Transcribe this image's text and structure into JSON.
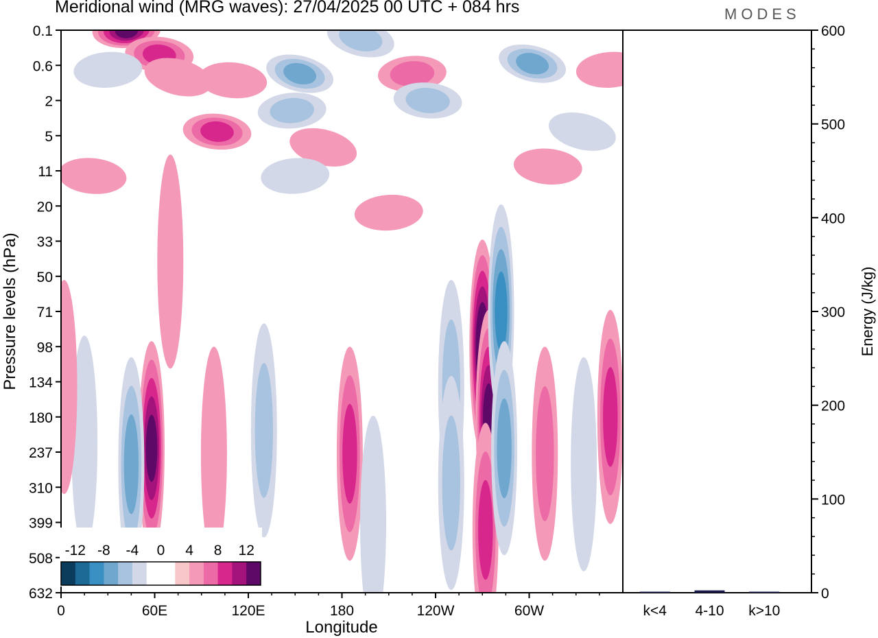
{
  "title": "Meridional wind (MRG waves):  27/04/2025  00 UTC  + 084 hrs",
  "brand": "MODES",
  "chart_data": {
    "type": "heatmap",
    "xlabel": "Longitude",
    "ylabel": "Pressure levels (hPa)",
    "y_scale": "log",
    "x_ticks": [
      "0",
      "60E",
      "120E",
      "180",
      "120W",
      "60W"
    ],
    "x_tick_degrees": [
      0,
      60,
      120,
      180,
      240,
      300
    ],
    "xlim": [
      0,
      360
    ],
    "y_ticks": [
      "0.1",
      "0.6",
      "2",
      "5",
      "11",
      "20",
      "33",
      "50",
      "71",
      "98",
      "134",
      "180",
      "237",
      "310",
      "399",
      "508",
      "632"
    ],
    "colorbar": {
      "tick_labels": [
        "-12",
        "-8",
        "-4",
        "0",
        "4",
        "8",
        "12"
      ],
      "colors": [
        "#0b3c5c",
        "#1b6a96",
        "#3a8fc2",
        "#6fa7cf",
        "#a8c3df",
        "#d3d8e8",
        "#ffffff",
        "#ffffff",
        "#f8c8c8",
        "#f49ab8",
        "#ec6aa6",
        "#d7268c",
        "#a4127b",
        "#5e0868"
      ]
    },
    "features": [
      {
        "lon": 42,
        "p": 0.1,
        "v": 12
      },
      {
        "lon": 63,
        "p": 0.35,
        "v": 8
      },
      {
        "lon": 75,
        "p": 0.9,
        "v": 4
      },
      {
        "lon": 30,
        "p": 0.7,
        "v": -4
      },
      {
        "lon": 110,
        "p": 1.0,
        "v": 4
      },
      {
        "lon": 153,
        "p": 0.8,
        "v": -8
      },
      {
        "lon": 148,
        "p": 2.6,
        "v": -6
      },
      {
        "lon": 100,
        "p": 4.5,
        "v": 8
      },
      {
        "lon": 168,
        "p": 6.5,
        "v": 4
      },
      {
        "lon": 150,
        "p": 12,
        "v": -4
      },
      {
        "lon": 20,
        "p": 12,
        "v": 4
      },
      {
        "lon": 192,
        "p": 0.15,
        "v": -6
      },
      {
        "lon": 225,
        "p": 0.8,
        "v": 6
      },
      {
        "lon": 235,
        "p": 2.0,
        "v": -6
      },
      {
        "lon": 302,
        "p": 0.55,
        "v": -8
      },
      {
        "lon": 352,
        "p": 0.7,
        "v": 4
      },
      {
        "lon": 312,
        "p": 10,
        "v": 4
      },
      {
        "lon": 334,
        "p": 4.5,
        "v": -4
      },
      {
        "lon": 270,
        "p": 98,
        "v": 14
      },
      {
        "lon": 274,
        "p": 180,
        "v": 12
      },
      {
        "lon": 272,
        "p": 420,
        "v": 8
      },
      {
        "lon": 282,
        "p": 71,
        "v": -10
      },
      {
        "lon": 284,
        "p": 230,
        "v": -8
      },
      {
        "lon": 250,
        "p": 140,
        "v": -6
      },
      {
        "lon": 250,
        "p": 300,
        "v": -6
      },
      {
        "lon": 185,
        "p": 240,
        "v": 8
      },
      {
        "lon": 200,
        "p": 400,
        "v": -4
      },
      {
        "lon": 58,
        "p": 230,
        "v": 12
      },
      {
        "lon": 45,
        "p": 260,
        "v": -8
      },
      {
        "lon": 15,
        "p": 220,
        "v": -4
      },
      {
        "lon": 130,
        "p": 200,
        "v": -6
      },
      {
        "lon": 98,
        "p": 240,
        "v": 4
      },
      {
        "lon": 310,
        "p": 240,
        "v": 6
      },
      {
        "lon": 335,
        "p": 260,
        "v": -4
      },
      {
        "lon": 352,
        "p": 180,
        "v": 8
      },
      {
        "lon": 70,
        "p": 42,
        "v": 4
      },
      {
        "lon": 210,
        "p": 22,
        "v": 4
      },
      {
        "lon": 2,
        "p": 140,
        "v": 4
      }
    ],
    "energy": {
      "ylabel": "Energy (J/kg)",
      "ylim": [
        0,
        600
      ],
      "y_ticks": [
        0,
        100,
        200,
        300,
        400,
        500,
        600
      ],
      "categories": [
        "k<4",
        "4-10",
        "k>10"
      ],
      "values": [
        0.5,
        2.5,
        0.5
      ],
      "bar_color": "#1a1a4a"
    }
  }
}
